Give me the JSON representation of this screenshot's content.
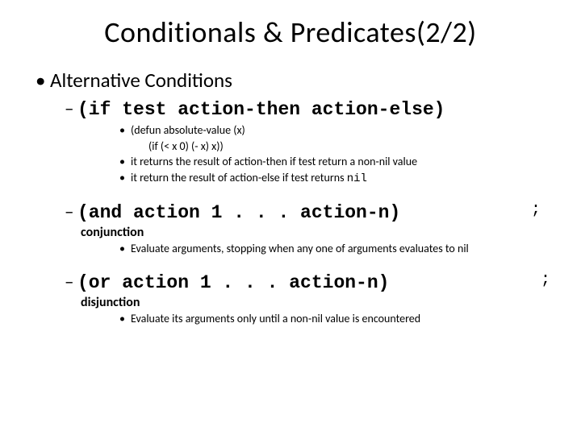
{
  "title": "Conditionals &  Predicates(2/2)",
  "h1": {
    "bullet": "•",
    "text": "Alternative Conditions"
  },
  "if": {
    "dash": "–",
    "code": "(if test action-then action-else)",
    "ex1": "(defun absolute-value (x)",
    "ex2": "(if (< x 0) (- x)  x))",
    "n1": "it returns the result of action-then if test return a non-nil value",
    "n2_a": "it return the result of action-else if test returns ",
    "n2_b": "nil"
  },
  "and": {
    "dash": "–",
    "code": "(and action 1 . . . action-n)",
    "semi": ";",
    "note": "conjunction",
    "n1": "Evaluate arguments, stopping when any one of arguments evaluates to nil"
  },
  "or": {
    "dash": "–",
    "code": "(or action 1 . . . action-n)",
    "semi": ";",
    "note": "disjunction",
    "n1": "Evaluate its arguments only until a non-nil value is encountered"
  },
  "dot": "•"
}
